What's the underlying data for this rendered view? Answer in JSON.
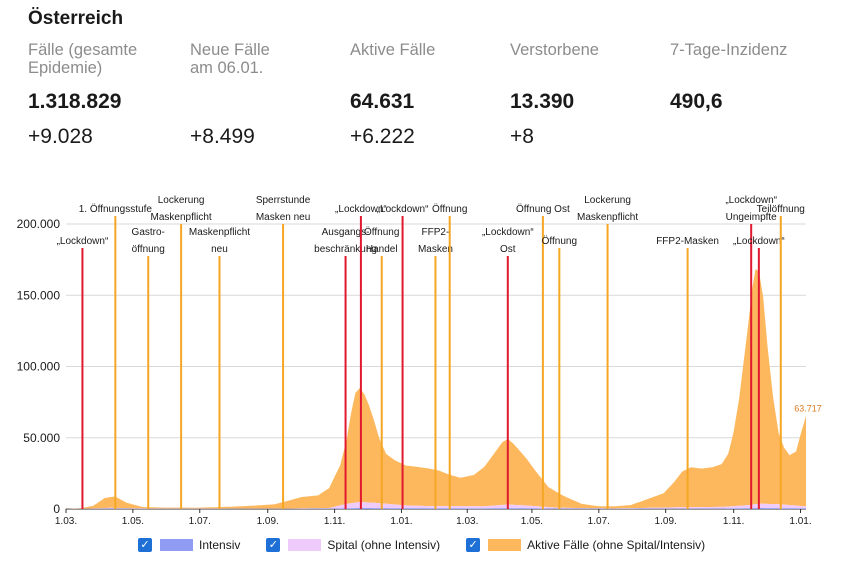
{
  "title": "Österreich",
  "stats": [
    {
      "label": "Fälle (gesamte\nEpidemie)",
      "value": "1.318.829",
      "delta": "+9.028"
    },
    {
      "label": "Neue Fälle\nam 06.01.",
      "value": "",
      "delta": "+8.499"
    },
    {
      "label": "Aktive Fälle",
      "value": "64.631",
      "delta": "+6.222"
    },
    {
      "label": "Verstorbene",
      "value": "13.390",
      "delta": "+8"
    },
    {
      "label": "7-Tage-Inzidenz",
      "value": "490,6",
      "delta": ""
    }
  ],
  "legend": [
    {
      "label": "Intensiv",
      "color": "#8f9cf2",
      "checked": true
    },
    {
      "label": "Spital (ohne Intensiv)",
      "color": "#eecbfa",
      "checked": true
    },
    {
      "label": "Aktive Fälle (ohne Spital/Intensiv)",
      "color": "#fdb85e",
      "checked": true
    }
  ],
  "chart_data": {
    "type": "area",
    "stacked": true,
    "title": "",
    "xlabel": "",
    "ylabel": "",
    "ylim": [
      0,
      200000
    ],
    "yticks": [
      0,
      50000,
      100000,
      150000,
      200000
    ],
    "ytick_labels": [
      "0",
      "50.000",
      "100.000",
      "150.000",
      "200.000"
    ],
    "xlim": [
      0,
      675
    ],
    "xticks": [
      0,
      61,
      122,
      184,
      245,
      306,
      366,
      425,
      486,
      547,
      609,
      670
    ],
    "xtick_labels": [
      "1.03.",
      "1.05.",
      "1.07.",
      "1.09.",
      "1.11.",
      "1.01.",
      "1.03.",
      "1.05.",
      "1.07.",
      "1.09.",
      "1.11.",
      "1.01."
    ],
    "x_unit": "days since 1 March 2020",
    "end_label": "63.717",
    "series": [
      {
        "name": "Aktive Fälle (ohne Spital/Intensiv)",
        "color": "#fdb85e",
        "points": [
          [
            0,
            0
          ],
          [
            15,
            500
          ],
          [
            25,
            2000
          ],
          [
            35,
            7000
          ],
          [
            45,
            8000
          ],
          [
            55,
            4000
          ],
          [
            70,
            1000
          ],
          [
            90,
            600
          ],
          [
            120,
            600
          ],
          [
            150,
            1300
          ],
          [
            170,
            2000
          ],
          [
            190,
            3000
          ],
          [
            205,
            6000
          ],
          [
            215,
            8000
          ],
          [
            230,
            9000
          ],
          [
            240,
            14000
          ],
          [
            250,
            28000
          ],
          [
            256,
            45000
          ],
          [
            260,
            63000
          ],
          [
            264,
            77000
          ],
          [
            268,
            80000
          ],
          [
            272,
            76000
          ],
          [
            276,
            69000
          ],
          [
            280,
            60000
          ],
          [
            286,
            45000
          ],
          [
            292,
            35000
          ],
          [
            300,
            31000
          ],
          [
            310,
            28000
          ],
          [
            318,
            27500
          ],
          [
            330,
            26500
          ],
          [
            340,
            25000
          ],
          [
            350,
            22000
          ],
          [
            360,
            20000
          ],
          [
            372,
            22000
          ],
          [
            382,
            28000
          ],
          [
            392,
            38000
          ],
          [
            398,
            44000
          ],
          [
            403,
            46000
          ],
          [
            408,
            43000
          ],
          [
            414,
            38000
          ],
          [
            420,
            33000
          ],
          [
            428,
            25000
          ],
          [
            440,
            14000
          ],
          [
            455,
            8000
          ],
          [
            470,
            3000
          ],
          [
            485,
            1500
          ],
          [
            500,
            1500
          ],
          [
            515,
            2200
          ],
          [
            530,
            6000
          ],
          [
            545,
            10000
          ],
          [
            555,
            18000
          ],
          [
            562,
            25000
          ],
          [
            570,
            28000
          ],
          [
            580,
            27000
          ],
          [
            590,
            28000
          ],
          [
            598,
            30000
          ],
          [
            604,
            37000
          ],
          [
            609,
            52000
          ],
          [
            614,
            75000
          ],
          [
            618,
            100000
          ],
          [
            622,
            125000
          ],
          [
            626,
            152000
          ],
          [
            629,
            165000
          ],
          [
            632,
            163000
          ],
          [
            636,
            145000
          ],
          [
            640,
            110000
          ],
          [
            645,
            75000
          ],
          [
            650,
            50000
          ],
          [
            655,
            40000
          ],
          [
            660,
            35000
          ],
          [
            666,
            38000
          ],
          [
            670,
            50000
          ],
          [
            673,
            58000
          ],
          [
            675,
            63717
          ]
        ]
      },
      {
        "name": "Spital (ohne Intensiv)",
        "color": "#eecbfa",
        "points": [
          [
            0,
            0
          ],
          [
            30,
            300
          ],
          [
            40,
            600
          ],
          [
            60,
            300
          ],
          [
            200,
            200
          ],
          [
            240,
            500
          ],
          [
            255,
            3000
          ],
          [
            268,
            4200
          ],
          [
            285,
            3500
          ],
          [
            310,
            2000
          ],
          [
            330,
            1600
          ],
          [
            380,
            1500
          ],
          [
            403,
            2500
          ],
          [
            420,
            2000
          ],
          [
            450,
            600
          ],
          [
            500,
            300
          ],
          [
            560,
            1000
          ],
          [
            600,
            1200
          ],
          [
            622,
            2200
          ],
          [
            632,
            3000
          ],
          [
            650,
            2800
          ],
          [
            675,
            1400
          ]
        ]
      },
      {
        "name": "Intensiv",
        "color": "#8f9cf2",
        "points": [
          [
            0,
            0
          ],
          [
            30,
            100
          ],
          [
            40,
            250
          ],
          [
            60,
            100
          ],
          [
            200,
            60
          ],
          [
            240,
            150
          ],
          [
            255,
            500
          ],
          [
            268,
            700
          ],
          [
            285,
            650
          ],
          [
            310,
            500
          ],
          [
            380,
            350
          ],
          [
            403,
            600
          ],
          [
            440,
            300
          ],
          [
            500,
            60
          ],
          [
            600,
            300
          ],
          [
            622,
            500
          ],
          [
            632,
            700
          ],
          [
            650,
            600
          ],
          [
            675,
            400
          ]
        ]
      }
    ],
    "events": [
      {
        "day": 15,
        "color": "#e0192f",
        "lines": [
          "„Lockdown“"
        ],
        "row": "lower"
      },
      {
        "day": 45,
        "color": "#f5a623",
        "lines": [
          "1. Öffnungsstufe"
        ],
        "row": "upper"
      },
      {
        "day": 75,
        "color": "#f5a623",
        "lines": [
          "Gastro-",
          "öffnung"
        ],
        "row": "lower"
      },
      {
        "day": 105,
        "color": "#f5a623",
        "lines": [
          "Lockerung",
          "Maskenpflicht"
        ],
        "row": "upper"
      },
      {
        "day": 140,
        "color": "#f5a623",
        "lines": [
          "Maskenpflicht",
          "neu"
        ],
        "row": "lower"
      },
      {
        "day": 198,
        "color": "#f5a623",
        "lines": [
          "Sperrstunde",
          "Masken neu"
        ],
        "row": "upper"
      },
      {
        "day": 255,
        "color": "#e0192f",
        "lines": [
          "Ausgangs-",
          "beschränkung"
        ],
        "row": "lower"
      },
      {
        "day": 269,
        "color": "#e0192f",
        "lines": [
          "„Lockdown“"
        ],
        "row": "upper"
      },
      {
        "day": 288,
        "color": "#f5a623",
        "lines": [
          "Öffnung",
          "Handel"
        ],
        "row": "lower"
      },
      {
        "day": 307,
        "color": "#e0192f",
        "lines": [
          "„Lockdown“"
        ],
        "row": "upper"
      },
      {
        "day": 337,
        "color": "#f5a623",
        "lines": [
          "FFP2-",
          "Masken"
        ],
        "row": "lower"
      },
      {
        "day": 350,
        "color": "#f5a623",
        "lines": [
          "Öffnung"
        ],
        "row": "upper"
      },
      {
        "day": 403,
        "color": "#e0192f",
        "lines": [
          "„Lockdown“",
          "Ost"
        ],
        "row": "lower"
      },
      {
        "day": 435,
        "color": "#f5a623",
        "lines": [
          "Öffnung Ost"
        ],
        "row": "upper"
      },
      {
        "day": 450,
        "color": "#f5a623",
        "lines": [
          "Öffnung"
        ],
        "row": "lower"
      },
      {
        "day": 494,
        "color": "#f5a623",
        "lines": [
          "Lockerung",
          "Maskenpflicht"
        ],
        "row": "upper"
      },
      {
        "day": 567,
        "color": "#f5a623",
        "lines": [
          "FFP2-Masken"
        ],
        "row": "lower"
      },
      {
        "day": 625,
        "color": "#e0192f",
        "lines": [
          "„Lockdown“",
          "Ungeimpfte"
        ],
        "row": "upper"
      },
      {
        "day": 632,
        "color": "#e0192f",
        "lines": [
          "„Lockdown“"
        ],
        "row": "lower"
      },
      {
        "day": 652,
        "color": "#f5a623",
        "lines": [
          "Teilöffnung"
        ],
        "row": "upper"
      }
    ]
  }
}
